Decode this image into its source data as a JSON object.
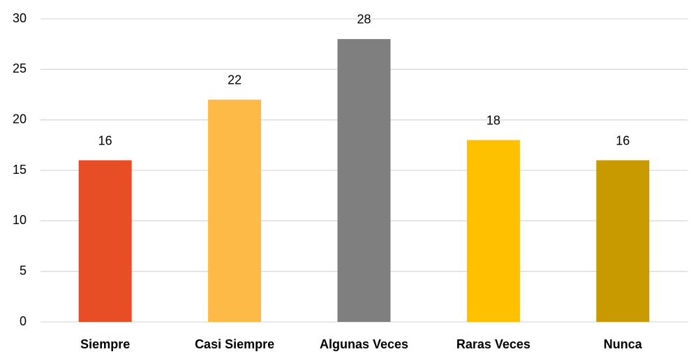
{
  "chart_data": {
    "type": "bar",
    "categories": [
      "Siempre",
      "Casi Siempre",
      "Algunas Veces",
      "Raras Veces",
      "Nunca"
    ],
    "values": [
      16,
      22,
      28,
      18,
      16
    ],
    "colors": [
      "#e84e26",
      "#fdba47",
      "#7f7f7f",
      "#ffc000",
      "#c99a00"
    ],
    "ylim": [
      0,
      30
    ],
    "yticks": [
      0,
      5,
      10,
      15,
      20,
      25,
      30
    ],
    "grid": true
  }
}
